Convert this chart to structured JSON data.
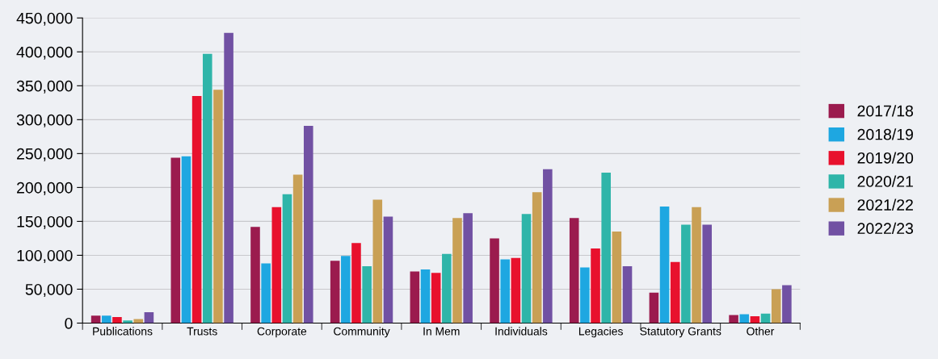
{
  "chart_data": {
    "type": "bar",
    "categories": [
      "Publications",
      "Trusts",
      "Corporate",
      "Community",
      "In Mem",
      "Individuals",
      "Legacies",
      "Statutory Grants",
      "Other"
    ],
    "series": [
      {
        "name": "2017/18",
        "color": "#9b1b4e",
        "values": [
          11000,
          244000,
          142000,
          92000,
          76000,
          125000,
          155000,
          45000,
          12000
        ]
      },
      {
        "name": "2018/19",
        "color": "#1ea7e1",
        "values": [
          11000,
          246000,
          88000,
          99000,
          79000,
          94000,
          82000,
          172000,
          13000
        ]
      },
      {
        "name": "2019/20",
        "color": "#e8112d",
        "values": [
          9000,
          335000,
          171000,
          118000,
          74000,
          96000,
          110000,
          90000,
          10000
        ]
      },
      {
        "name": "2020/21",
        "color": "#2fb5a9",
        "values": [
          4000,
          397000,
          190000,
          84000,
          102000,
          161000,
          222000,
          145000,
          14000
        ]
      },
      {
        "name": "2021/22",
        "color": "#c9a055",
        "values": [
          6000,
          344000,
          219000,
          182000,
          155000,
          193000,
          135000,
          171000,
          50000
        ]
      },
      {
        "name": "2022/23",
        "color": "#7151a3",
        "values": [
          16000,
          428000,
          291000,
          157000,
          162000,
          227000,
          84000,
          145000,
          56000
        ]
      }
    ],
    "ylim": [
      0,
      450000
    ],
    "yticks": [
      {
        "value": 0,
        "label": "0"
      },
      {
        "value": 50000,
        "label": "50,000"
      },
      {
        "value": 100000,
        "label": "100,000"
      },
      {
        "value": 150000,
        "label": "150,000"
      },
      {
        "value": 200000,
        "label": "200,000"
      },
      {
        "value": 250000,
        "label": "250,000"
      },
      {
        "value": 300000,
        "label": "300,000"
      },
      {
        "value": 350000,
        "label": "350,000"
      },
      {
        "value": 400000,
        "label": "400,000"
      },
      {
        "value": 450000,
        "label": "450,000"
      }
    ],
    "grid": "y",
    "legend": "right"
  }
}
